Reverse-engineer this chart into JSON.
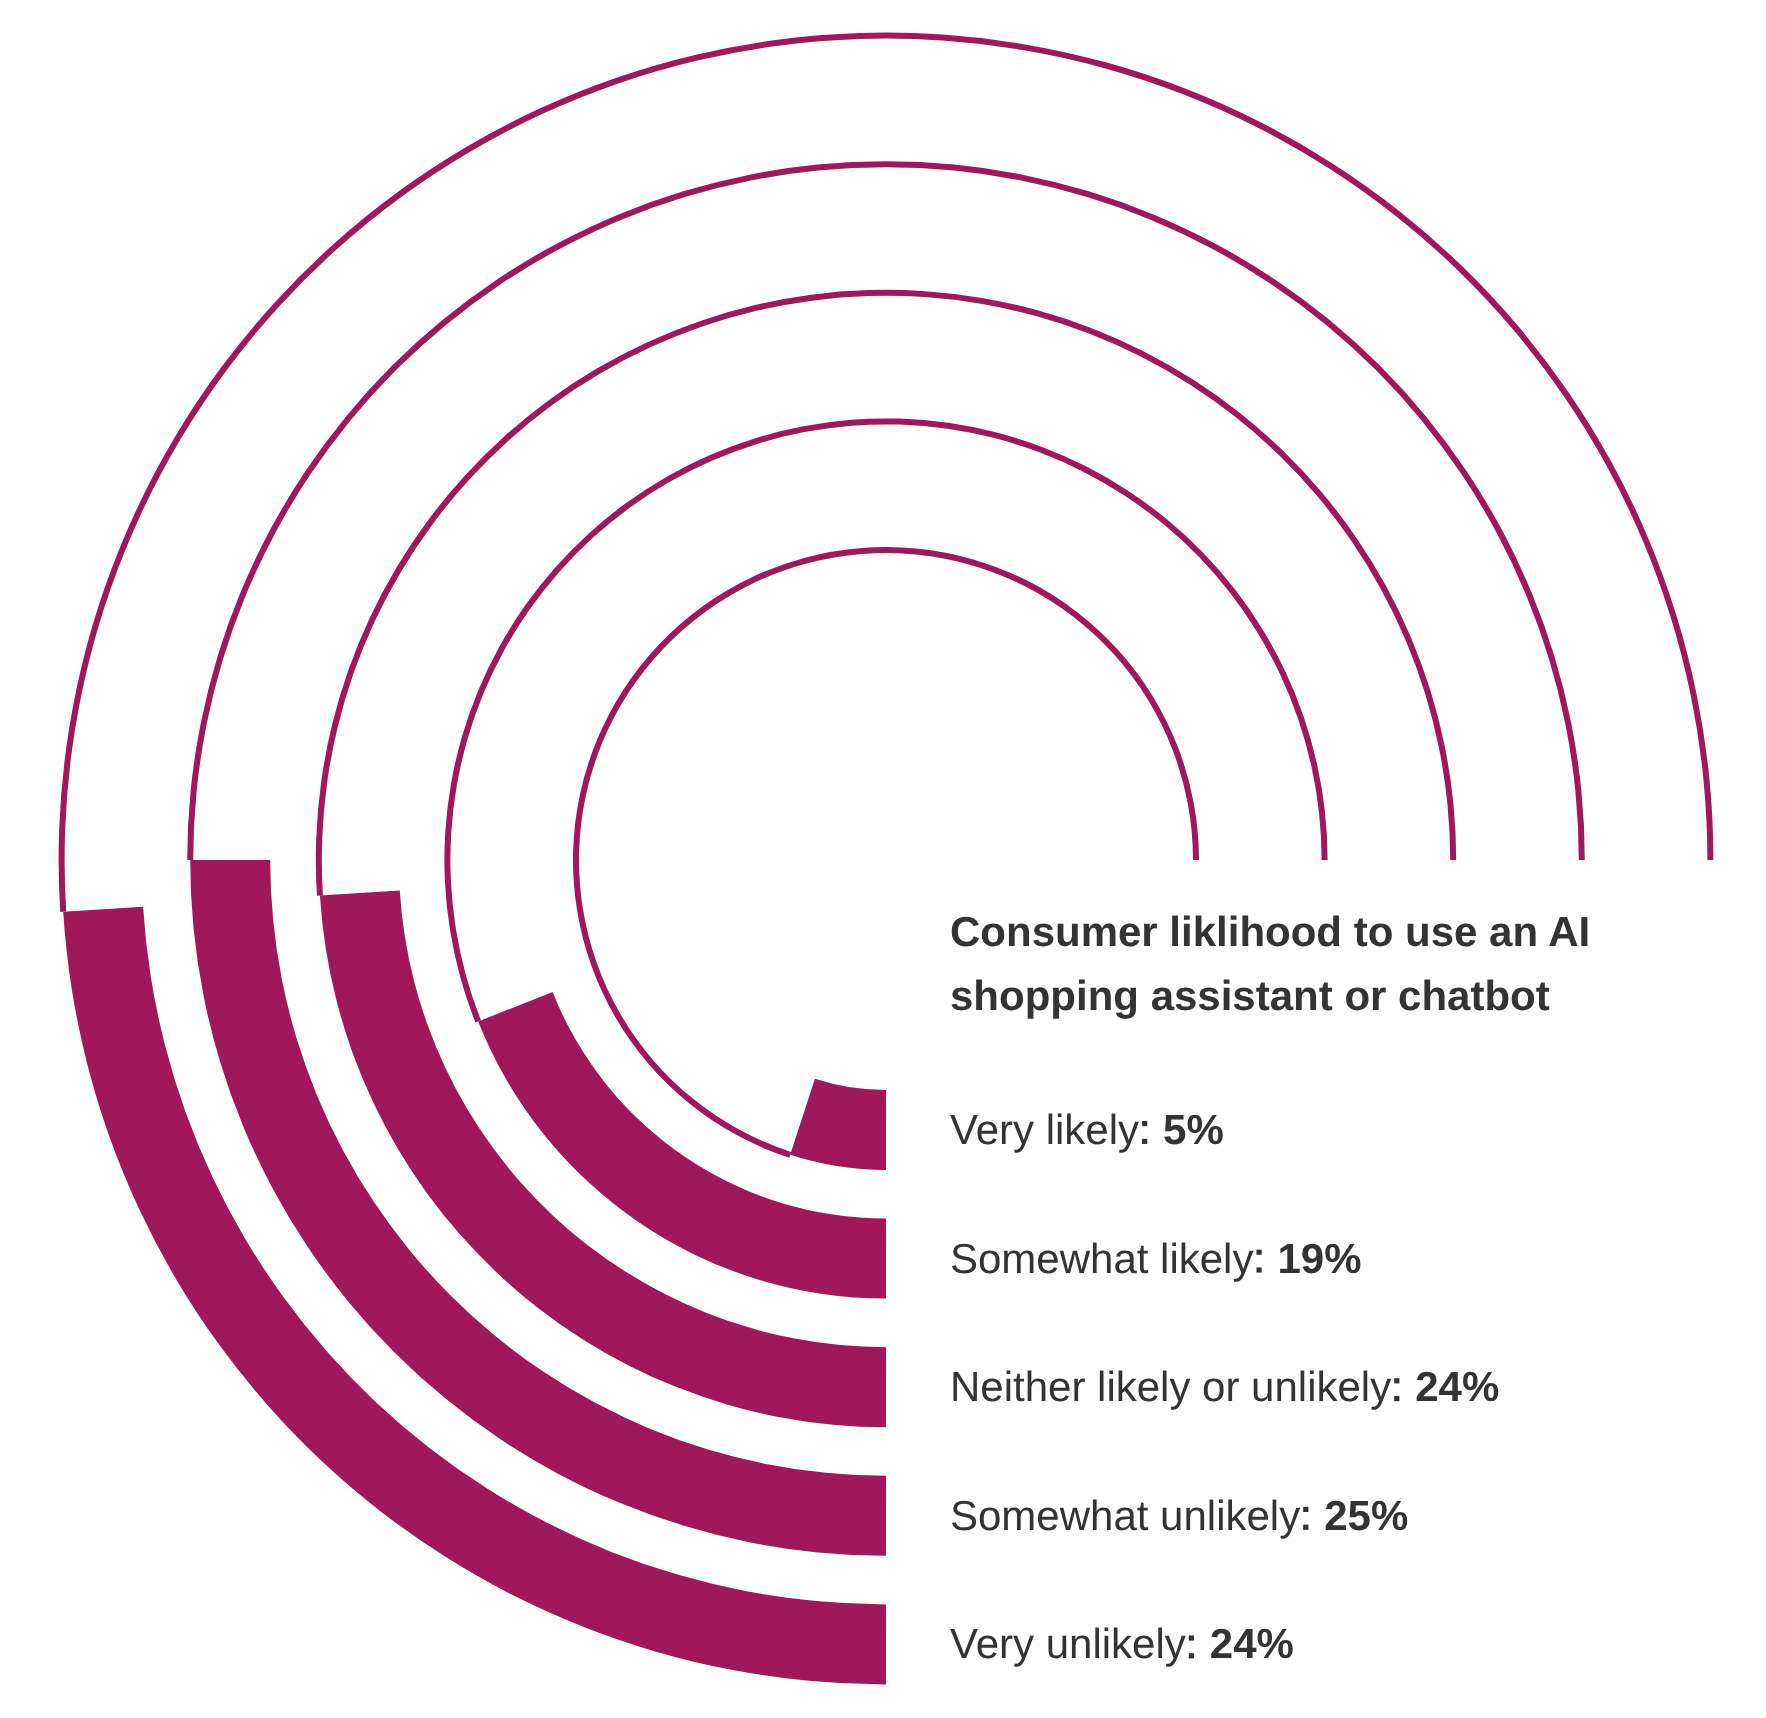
{
  "chart_data": {
    "type": "other",
    "title": "Consumer liklihood to use an AI shopping assistant or chatbot",
    "categories": [
      "Very likely",
      "Somewhat likely",
      "Neither likely or unlikely",
      "Somewhat unlikely",
      "Very unlikely"
    ],
    "values": [
      5,
      19,
      24,
      25,
      24
    ],
    "value_labels": [
      "5%",
      "19%",
      "24%",
      "25%",
      "24%"
    ],
    "color": "#a0185a"
  }
}
